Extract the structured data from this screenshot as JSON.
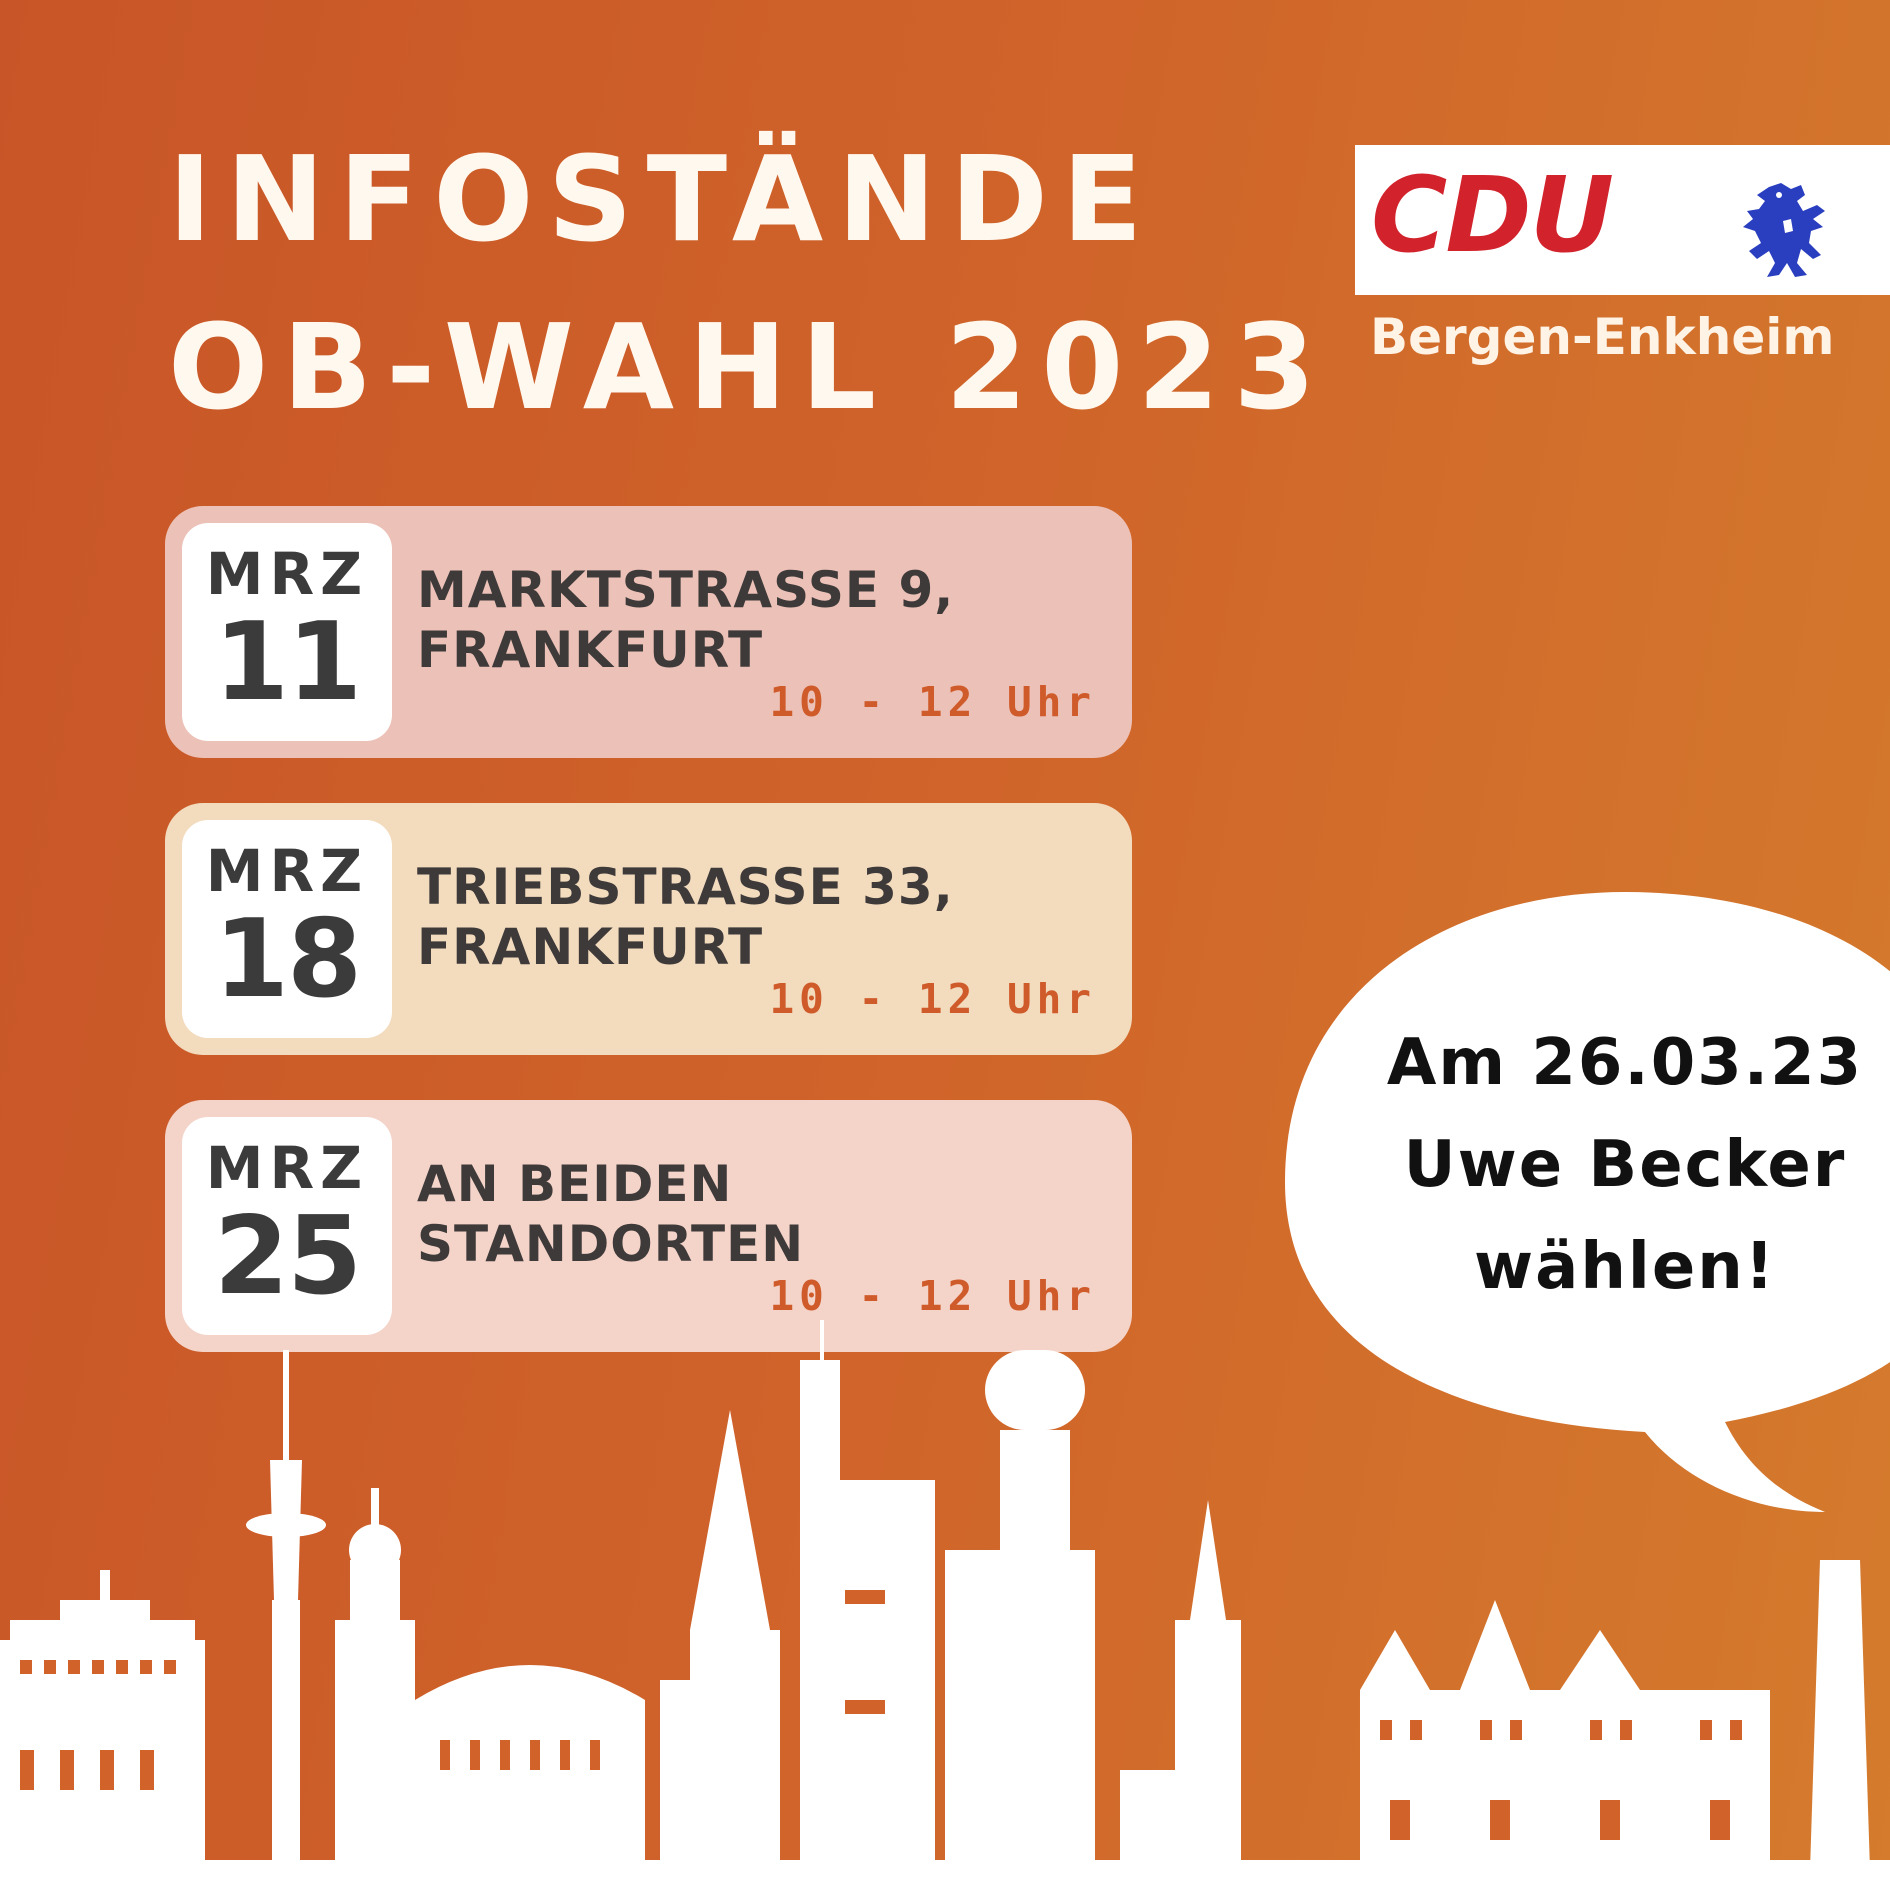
{
  "header": {
    "title_line1": "INFOSTÄNDE",
    "title_line2": "OB-WAHL 2023"
  },
  "logo": {
    "party": "CDU",
    "party_color": "#d2232d",
    "emblem": "hessian-lion-icon",
    "emblem_color": "#2a3fbf",
    "org": "Bergen-Enkheim"
  },
  "events": [
    {
      "month": "MRZ",
      "day": "11",
      "place_line1": "MARKTSTRASSE 9,",
      "place_line2": "FRANKFURT",
      "time": "10 - 12 Uhr"
    },
    {
      "month": "MRZ",
      "day": "18",
      "place_line1": "TRIEBSTRASSE 33,",
      "place_line2": "FRANKFURT",
      "time": "10 - 12 Uhr"
    },
    {
      "month": "MRZ",
      "day": "25",
      "place_line1": "AN BEIDEN",
      "place_line2": "STANDORTEN",
      "time": "10 - 12 Uhr"
    }
  ],
  "callout": {
    "line1": "Am 26.03.23",
    "line2": "Uwe Becker",
    "line3": "wählen!"
  },
  "colors": {
    "background_start": "#c85527",
    "background_end": "#d47b2d",
    "time_text": "#cf5a2a"
  }
}
